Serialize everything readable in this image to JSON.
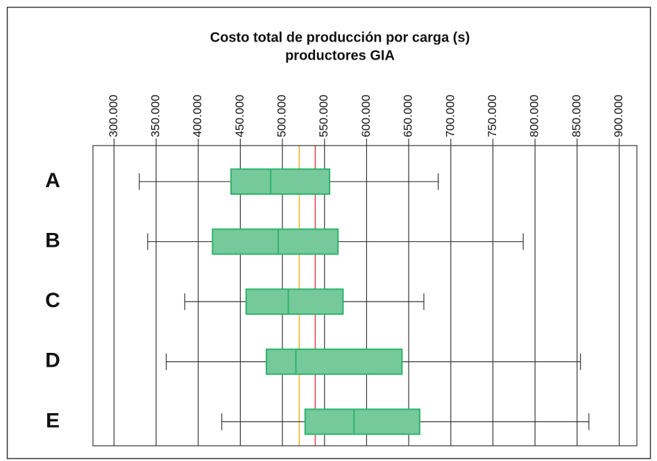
{
  "chart_data": {
    "type": "boxplot",
    "title": "Costo total de producción por carga (s)",
    "subtitle": "productores GIA",
    "categories": [
      "A",
      "B",
      "C",
      "D",
      "E"
    ],
    "min": [
      330000,
      340000,
      384000,
      362000,
      428000
    ],
    "q1": [
      439000,
      417000,
      457000,
      481000,
      527000
    ],
    "median": [
      486000,
      495000,
      507000,
      516000,
      585000
    ],
    "q3": [
      556000,
      566000,
      572000,
      642000,
      663000
    ],
    "max": [
      685000,
      786000,
      668000,
      854000,
      864000
    ],
    "color": "#76c99b",
    "edge_color": "#2bb36b",
    "reference_lines": [
      {
        "value": 520000,
        "color": "#f0b429"
      },
      {
        "value": 539000,
        "color": "#e0474c"
      }
    ],
    "xlim": [
      275000,
      921000
    ],
    "xticks": [
      {
        "value": 300000,
        "label": "300.000"
      },
      {
        "value": 350000,
        "label": "350.000"
      },
      {
        "value": 400000,
        "label": "400.000"
      },
      {
        "value": 450000,
        "label": "450.000"
      },
      {
        "value": 500000,
        "label": "500.000"
      },
      {
        "value": 550000,
        "label": "550.000"
      },
      {
        "value": 600000,
        "label": "600.000"
      },
      {
        "value": 650000,
        "label": "650.000"
      },
      {
        "value": 700000,
        "label": "700.000"
      },
      {
        "value": 750000,
        "label": "750.000"
      },
      {
        "value": 800000,
        "label": "800.000"
      },
      {
        "value": 850000,
        "label": "850.000"
      },
      {
        "value": 900000,
        "label": "900.000"
      }
    ],
    "grid": true
  }
}
